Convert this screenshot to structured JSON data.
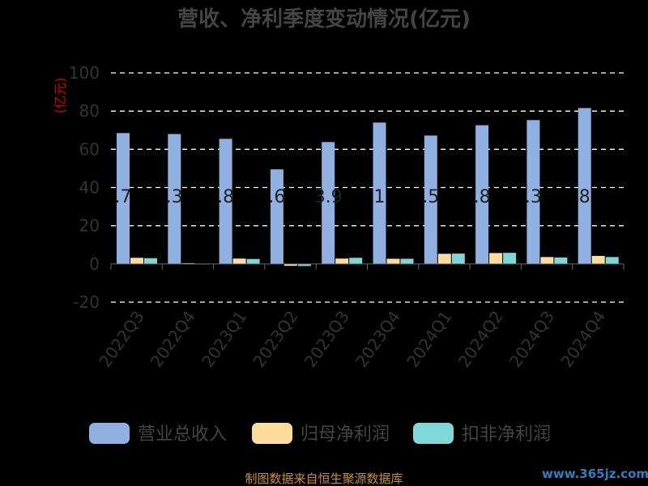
{
  "colors": {
    "revenue": "#8fb0e0",
    "net_profit": "#fddc9c",
    "deducted_profit": "#7fd7d7"
  },
  "source_text": "制图数据来自恒生聚源数据库",
  "watermark_text": "www.365jz.com",
  "chart_data": {
    "type": "bar",
    "title": "营收、净利季度变动情况(亿元)",
    "ylabel": "(亿元)",
    "ylim": [
      -20,
      100
    ],
    "yticks": [
      "100",
      "80",
      "60",
      "40",
      "20",
      "0",
      "-20"
    ],
    "ytick_values": [
      100,
      80,
      60,
      40,
      20,
      0,
      -20
    ],
    "grid": true,
    "legend_position": "bottom",
    "categories": [
      "2022Q3",
      "2022Q4",
      "2023Q1",
      "2023Q2",
      "2023Q3",
      "2023Q4",
      "2024Q1",
      "2024Q2",
      "2024Q3",
      "2024Q4"
    ],
    "series": [
      {
        "name": "营业总收入",
        "color_key": "revenue",
        "values": [
          68.5,
          68.0,
          65.5,
          49.5,
          63.8,
          74.0,
          67.2,
          72.6,
          75.3,
          81.6
        ]
      },
      {
        "name": "归母净利润",
        "color_key": "net_profit",
        "values": [
          3.2,
          0.4,
          2.8,
          -1.0,
          2.8,
          2.7,
          5.3,
          5.7,
          3.6,
          4.2
        ]
      },
      {
        "name": "扣非净利润",
        "color_key": "deducted_profit",
        "values": [
          3.0,
          0.0,
          2.6,
          -1.1,
          3.2,
          2.7,
          5.4,
          5.8,
          3.4,
          3.6
        ]
      }
    ],
    "data_labels": [
      ".7",
      ".3",
      ".8",
      ".6",
      "3.9",
      "1",
      ".5",
      ".8",
      ".3",
      "8"
    ]
  }
}
